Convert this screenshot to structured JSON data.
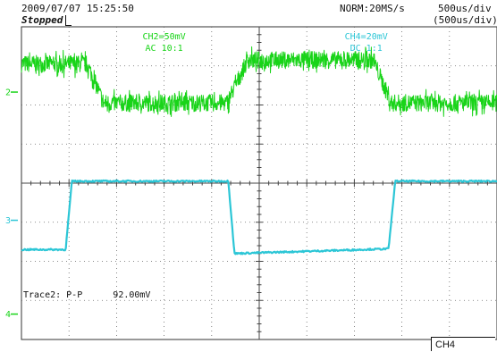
{
  "header": {
    "datetime": "2009/07/07  15:25:50",
    "status": "Stopped",
    "mode": "NORM:20MS/s",
    "timebase": "500us/div",
    "timebase_sub": "(500us/div)"
  },
  "footer": {
    "channel_box": "CH4"
  },
  "colors": {
    "ch2": "#19d419",
    "ch4": "#2cc6d6",
    "grid": "#666666"
  },
  "chart_data": {
    "type": "line",
    "divisions": {
      "x": 10,
      "y": 8
    },
    "x_unit": "div",
    "x_range": [
      0,
      10
    ],
    "y_range": [
      -4,
      4
    ],
    "grid": true,
    "series": [
      {
        "name": "CH2=50mV",
        "coupling": "AC  10:1",
        "marker": "2",
        "ref_y": 2.33,
        "color": "#19d419",
        "noise_div": 0.22,
        "points": [
          [
            0,
            3.05
          ],
          [
            1.38,
            3.05
          ],
          [
            1.73,
            2.05
          ],
          [
            4.32,
            2.05
          ],
          [
            4.76,
            3.15
          ],
          [
            7.4,
            3.15
          ],
          [
            7.77,
            2.05
          ],
          [
            10,
            2.05
          ]
        ]
      },
      {
        "name": "CH4=20mV",
        "coupling": "DC  1:1",
        "marker": "3",
        "ref_y": -0.95,
        "color": "#2cc6d6",
        "noise_div": 0.02,
        "points": [
          [
            0,
            -1.7
          ],
          [
            0.93,
            -1.7
          ],
          [
            1.06,
            0.05
          ],
          [
            4.35,
            0.05
          ],
          [
            4.48,
            -1.8
          ],
          [
            7.72,
            -1.68
          ],
          [
            7.86,
            0.05
          ],
          [
            10,
            0.05
          ]
        ]
      }
    ],
    "extra_marker": {
      "label": "4",
      "ref_y": -3.35
    },
    "measurements": [
      {
        "label": "Trace2: P-P",
        "value": "92.00mV"
      }
    ]
  }
}
